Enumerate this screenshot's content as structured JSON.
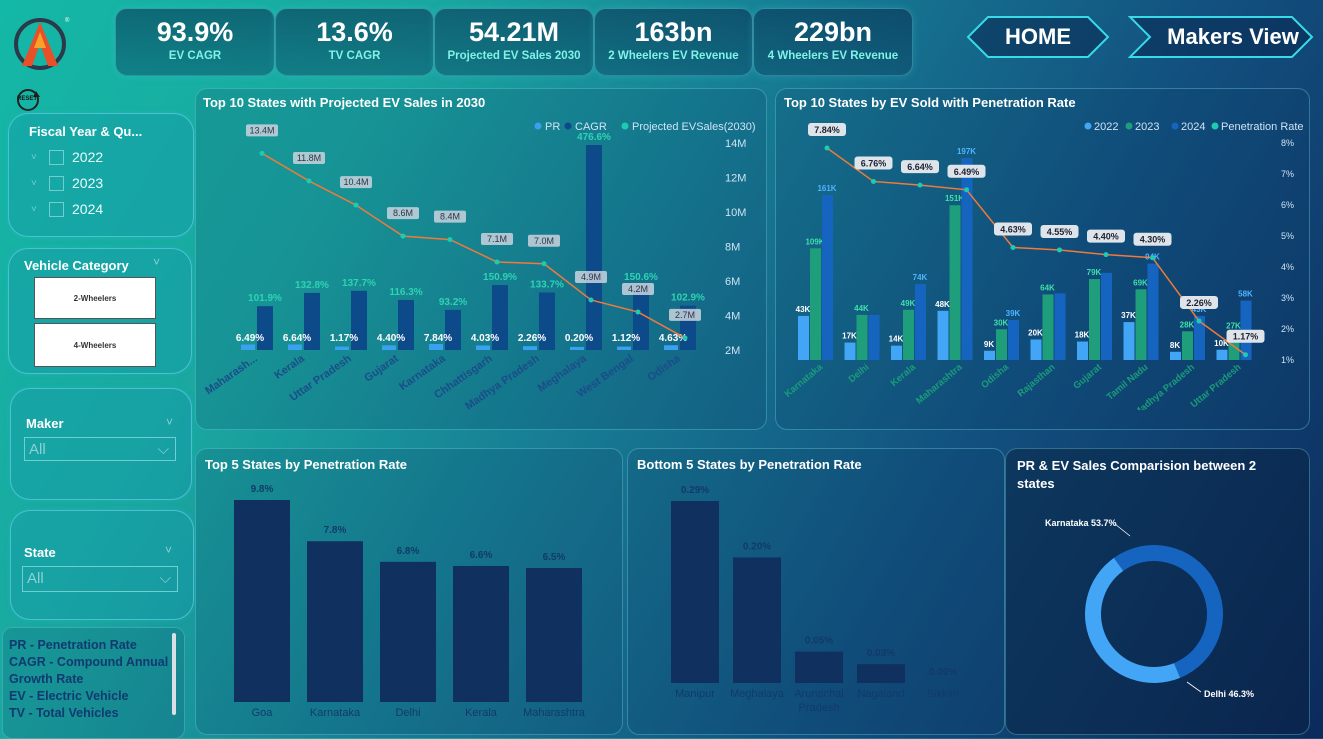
{
  "kpis": [
    {
      "value": "93.9%",
      "label": "EV CAGR"
    },
    {
      "value": "13.6%",
      "label": "TV CAGR"
    },
    {
      "value": "54.21M",
      "label": "Projected EV Sales 2030"
    },
    {
      "value": "163bn",
      "label": "2 Wheelers EV Revenue"
    },
    {
      "value": "229bn",
      "label": "4 Wheelers EV Revenue"
    }
  ],
  "nav": {
    "home": "HOME",
    "makers": "Makers View"
  },
  "reset_label": "RESET",
  "slicers": {
    "fiscal": {
      "title": "Fiscal Year & Qu...",
      "items": [
        "2022",
        "2023",
        "2024"
      ]
    },
    "vehicle": {
      "title": "Vehicle Category",
      "items": [
        "2-Wheelers",
        "4-Wheelers"
      ]
    },
    "maker": {
      "title": "Maker",
      "value": "All"
    },
    "state": {
      "title": "State",
      "value": "All"
    }
  },
  "legend_note": [
    "PR - Penetration Rate",
    "CAGR - Compound Annual",
    "Growth Rate",
    "EV - Electric Vehicle",
    "TV - Total Vehicles"
  ],
  "colors": {
    "pr": "#3aa0f0",
    "cagr": "#0d4a8a",
    "line": "#f07a3a",
    "dot": "#1ecbb0",
    "y2022": "#42a5f5",
    "y2023": "#1e9e7a",
    "y2024": "#1565c0",
    "bar_dark": "#10305f",
    "donut_a": "#1565c0",
    "donut_b": "#42a5f5"
  },
  "chart_data": [
    {
      "type": "bar",
      "title": "Top 10 States with Projected EV Sales in 2030",
      "legend": [
        "PR",
        "CAGR",
        "Projected EVSales(2030)"
      ],
      "categories": [
        "Maharash...",
        "Kerala",
        "Uttar Pradesh",
        "Gujarat",
        "Karnataka",
        "Chhattisgarh",
        "Madhya Pradesh",
        "Meghalaya",
        "West Bengal",
        "Odisha"
      ],
      "series": [
        {
          "name": "PR",
          "values": [
            6.49,
            6.64,
            1.17,
            4.4,
            7.84,
            4.03,
            2.26,
            0.2,
            1.12,
            4.63
          ],
          "labels": [
            "6.49%",
            "6.64%",
            "1.17%",
            "4.40%",
            "7.84%",
            "4.03%",
            "2.26%",
            "0.20%",
            "1.12%",
            "4.63%"
          ]
        },
        {
          "name": "CAGR",
          "values": [
            101.9,
            132.8,
            137.7,
            116.3,
            93.2,
            150.9,
            133.7,
            476.6,
            150.6,
            102.9
          ],
          "labels": [
            "101.9%",
            "132.8%",
            "137.7%",
            "116.3%",
            "93.2%",
            "150.9%",
            "133.7%",
            "476.6%",
            "150.6%",
            "102.9%"
          ]
        },
        {
          "name": "Projected EVSales(2030)",
          "values": [
            13.4,
            11.8,
            10.4,
            8.6,
            8.4,
            7.1,
            7.0,
            4.9,
            4.2,
            2.7
          ],
          "labels": [
            "13.4M",
            "11.8M",
            "10.4M",
            "8.6M",
            "8.4M",
            "7.1M",
            "7.0M",
            "4.9M",
            "4.2M",
            "2.7M"
          ]
        }
      ],
      "y2_ticks": [
        "14M",
        "12M",
        "10M",
        "8M",
        "6M",
        "4M",
        "2M"
      ],
      "y2lim": [
        2,
        14
      ]
    },
    {
      "type": "bar",
      "title": "Top 10 States by EV Sold with Penetration Rate",
      "legend": [
        "2022",
        "2023",
        "2024",
        "Penetration Rate"
      ],
      "categories": [
        "Karnataka",
        "Delhi",
        "Kerala",
        "Maharashtra",
        "Odisha",
        "Rajasthan",
        "Gujarat",
        "Tamil Nadu",
        "Madhya Pradesh",
        "Uttar Pradesh"
      ],
      "series": [
        {
          "name": "2022",
          "values": [
            43,
            17,
            14,
            48,
            9,
            20,
            18,
            37,
            8,
            10
          ],
          "labels": [
            "43K",
            "17K",
            "14K",
            "48K",
            "9K",
            "20K",
            "18K",
            "37K",
            "8K",
            "10K"
          ]
        },
        {
          "name": "2023",
          "values": [
            109,
            44,
            49,
            151,
            30,
            64,
            79,
            69,
            28,
            27
          ],
          "labels": [
            "109K",
            "44K",
            "49K",
            "151K",
            "30K",
            "64K",
            "79K",
            "69K",
            "28K",
            "27K"
          ]
        },
        {
          "name": "2024",
          "values": [
            161,
            44,
            74,
            197,
            39,
            65,
            85,
            94,
            43,
            58
          ],
          "labels": [
            "161K",
            "",
            "74K",
            "197K",
            "39K",
            "",
            "",
            "94K",
            "43K",
            "58K"
          ]
        },
        {
          "name": "Penetration Rate",
          "values": [
            7.84,
            6.76,
            6.64,
            6.49,
            4.63,
            4.55,
            4.4,
            4.3,
            2.26,
            1.17
          ],
          "labels": [
            "7.84%",
            "6.76%",
            "6.64%",
            "6.49%",
            "4.63%",
            "4.55%",
            "4.40%",
            "4.30%",
            "2.26%",
            "1.17%"
          ]
        }
      ],
      "y2_ticks": [
        "8%",
        "7%",
        "6%",
        "5%",
        "4%",
        "3%",
        "2%",
        "1%"
      ],
      "y2lim": [
        1,
        8
      ]
    },
    {
      "type": "bar",
      "title": "Top 5 States by Penetration Rate",
      "categories": [
        "Goa",
        "Karnataka",
        "Delhi",
        "Kerala",
        "Maharashtra"
      ],
      "values": [
        9.8,
        7.8,
        6.8,
        6.6,
        6.5
      ],
      "labels": [
        "9.8%",
        "7.8%",
        "6.8%",
        "6.6%",
        "6.5%"
      ]
    },
    {
      "type": "bar",
      "title": "Bottom 5 States by Penetration Rate",
      "categories": [
        "Manipur",
        "Meghalaya",
        "Arunachal Pradesh",
        "Nagaland",
        "Sikkim"
      ],
      "values": [
        0.29,
        0.2,
        0.05,
        0.03,
        0.0
      ],
      "labels": [
        "0.29%",
        "0.20%",
        "0.05%",
        "0.03%",
        "0.00%"
      ]
    },
    {
      "type": "pie",
      "title": "PR & EV Sales Comparision between 2 states",
      "slices": [
        {
          "name": "Karnataka",
          "value": 53.7,
          "label": "Karnataka 53.7%"
        },
        {
          "name": "Delhi",
          "value": 46.3,
          "label": "Delhi 46.3%"
        }
      ]
    }
  ]
}
